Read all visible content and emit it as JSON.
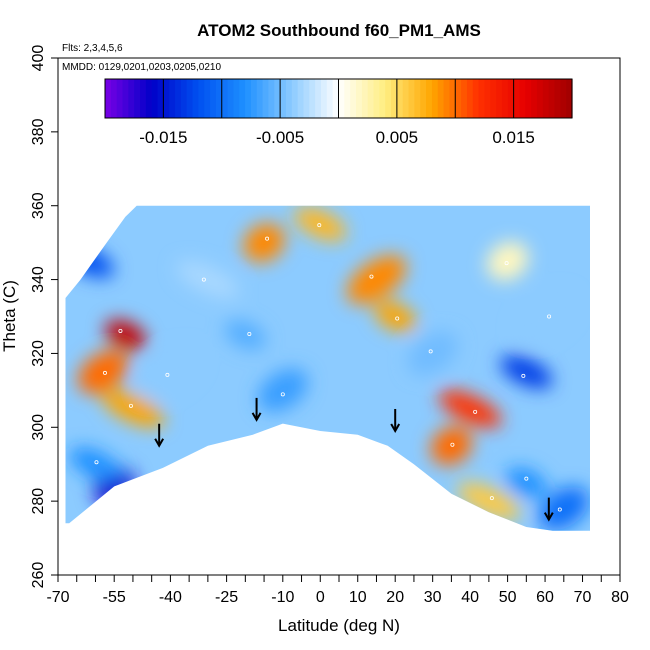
{
  "chart_data": {
    "type": "heatmap",
    "title": "ATOM2 Southbound f60_PM1_AMS",
    "annotations": [
      "Flts: 2,3,4,5,6",
      "MMDD: 0129,0201,0203,0205,0210"
    ],
    "xlabel": "Latitude (deg N)",
    "ylabel": "Theta (C)",
    "xlim": [
      -70,
      80
    ],
    "ylim": [
      260,
      400
    ],
    "x_tick_labels": [
      "-70",
      "-55",
      "-40",
      "-25",
      "-10",
      "0",
      "10",
      "20",
      "30",
      "40",
      "50",
      "60",
      "70",
      "80"
    ],
    "x_tick_values": [
      -70,
      -55,
      -40,
      -25,
      -10,
      0,
      10,
      20,
      30,
      40,
      50,
      60,
      70,
      80
    ],
    "x_minor_ticks": [
      -65,
      -60,
      -50,
      -45,
      -35,
      -30,
      -20,
      -15,
      -5,
      5,
      15,
      25,
      35,
      45,
      55,
      65,
      75
    ],
    "y_tick_labels": [
      "260",
      "280",
      "300",
      "320",
      "340",
      "360",
      "380",
      "400"
    ],
    "y_tick_values": [
      260,
      280,
      300,
      320,
      340,
      360,
      380,
      400
    ],
    "colorbar": {
      "range": [
        -0.02,
        0.02
      ],
      "tick_values": [
        -0.015,
        -0.005,
        0.005,
        0.015
      ],
      "tick_labels": [
        "-0.015",
        "-0.005",
        "0.005",
        "0.015"
      ],
      "colors": [
        "#7a00e6",
        "#0000c8",
        "#0050f0",
        "#1e90ff",
        "#8ccbff",
        "#ffffff",
        "#ffee80",
        "#ffa500",
        "#ff3000",
        "#e60000",
        "#a00000"
      ]
    },
    "coverage": {
      "top_theta": 360,
      "top_lat_range": [
        -63,
        72
      ],
      "bottom_boundary": [
        [
          -67,
          274
        ],
        [
          -55,
          284
        ],
        [
          -42,
          289
        ],
        [
          -30,
          295
        ],
        [
          -18,
          298
        ],
        [
          -10,
          301
        ],
        [
          0,
          299
        ],
        [
          10,
          298
        ],
        [
          18,
          295
        ],
        [
          25,
          290
        ],
        [
          35,
          282
        ],
        [
          45,
          277
        ],
        [
          55,
          273
        ],
        [
          62,
          272
        ],
        [
          72,
          272
        ]
      ],
      "left_boundary": [
        [
          -68,
          274
        ],
        [
          -68,
          335
        ],
        [
          -64,
          340
        ],
        [
          -57,
          350
        ],
        [
          -52,
          357
        ],
        [
          -49,
          360
        ]
      ]
    },
    "features": [
      {
        "lat": -52,
        "theta": 325,
        "value": 0.018
      },
      {
        "lat": -58,
        "theta": 315,
        "value": 0.01
      },
      {
        "lat": -50,
        "theta": 305,
        "value": 0.008
      },
      {
        "lat": -55,
        "theta": 284,
        "value": -0.017
      },
      {
        "lat": -60,
        "theta": 290,
        "value": -0.008
      },
      {
        "lat": -40,
        "theta": 315,
        "value": -0.004
      },
      {
        "lat": -20,
        "theta": 325,
        "value": -0.006
      },
      {
        "lat": -10,
        "theta": 310,
        "value": -0.007
      },
      {
        "lat": -30,
        "theta": 340,
        "value": -0.003
      },
      {
        "lat": -15,
        "theta": 350,
        "value": 0.009
      },
      {
        "lat": 0,
        "theta": 355,
        "value": 0.007
      },
      {
        "lat": 15,
        "theta": 340,
        "value": 0.009
      },
      {
        "lat": 20,
        "theta": 330,
        "value": 0.008
      },
      {
        "lat": 30,
        "theta": 320,
        "value": -0.005
      },
      {
        "lat": 40,
        "theta": 305,
        "value": 0.012
      },
      {
        "lat": 35,
        "theta": 295,
        "value": 0.01
      },
      {
        "lat": 55,
        "theta": 315,
        "value": -0.013
      },
      {
        "lat": 60,
        "theta": 330,
        "value": -0.004
      },
      {
        "lat": 55,
        "theta": 285,
        "value": -0.008
      },
      {
        "lat": 65,
        "theta": 278,
        "value": -0.01
      },
      {
        "lat": 45,
        "theta": 280,
        "value": 0.006
      },
      {
        "lat": 50,
        "theta": 345,
        "value": 0.002
      },
      {
        "lat": -62,
        "theta": 345,
        "value": -0.012
      }
    ],
    "arrows": [
      {
        "lat": -43,
        "theta": 295
      },
      {
        "lat": -17,
        "theta": 302
      },
      {
        "lat": 20,
        "theta": 299
      },
      {
        "lat": 61,
        "theta": 275
      }
    ]
  }
}
